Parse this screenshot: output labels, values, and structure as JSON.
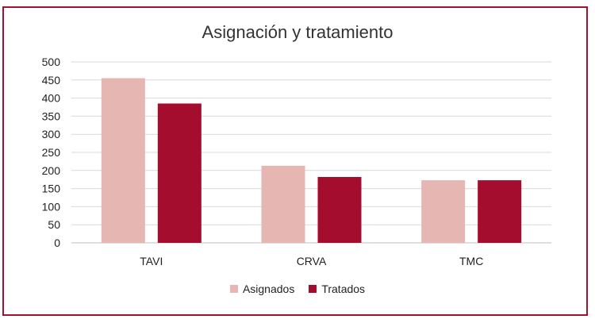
{
  "chart_data": {
    "type": "bar",
    "title": "Asignación y tratamiento",
    "categories": [
      "TAVI",
      "CRVA",
      "TMC"
    ],
    "series": [
      {
        "name": "Asignados",
        "values": [
          455,
          213,
          173
        ],
        "color": "#e6b6b3"
      },
      {
        "name": "Tratados",
        "values": [
          385,
          182,
          173
        ],
        "color": "#a50d2f"
      }
    ],
    "ylim": [
      0,
      500
    ],
    "yticks": [
      0,
      50,
      100,
      150,
      200,
      250,
      300,
      350,
      400,
      450,
      500
    ],
    "grid": true,
    "legend": "bottom"
  },
  "frame_color": "#a0142e"
}
